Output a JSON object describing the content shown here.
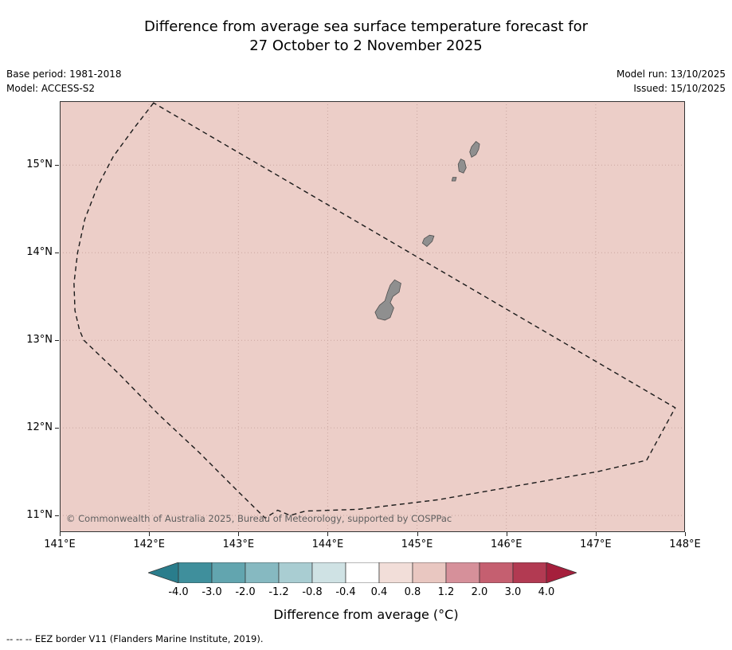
{
  "title": {
    "line1": "Difference from average sea surface temperature forecast for",
    "line2": "27 October to 2 November 2025"
  },
  "meta": {
    "base_period": "Base period: 1981-2018",
    "model": "Model: ACCESS-S2",
    "model_run": "Model run: 13/10/2025",
    "issued": "Issued: 15/10/2025"
  },
  "map": {
    "copyright": "© Commonwealth of Australia 2025, Bureau of Meteorology, supported by COSPPac",
    "lon_min": 141,
    "lon_max": 148,
    "lat_min": 10.81,
    "lat_max": 15.73,
    "colors": {
      "sea": "#eccec8",
      "grid": "#c9a6a0",
      "island": "#8f8f8f",
      "island_outline": "#4f4f4f",
      "eez": "#1a1a1a",
      "frame": "#333333"
    },
    "x_ticks": [
      {
        "lon": 141,
        "label": "141°E"
      },
      {
        "lon": 142,
        "label": "142°E"
      },
      {
        "lon": 143,
        "label": "143°E"
      },
      {
        "lon": 144,
        "label": "144°E"
      },
      {
        "lon": 145,
        "label": "145°E"
      },
      {
        "lon": 146,
        "label": "146°E"
      },
      {
        "lon": 147,
        "label": "147°E"
      },
      {
        "lon": 148,
        "label": "148°E"
      }
    ],
    "y_ticks": [
      {
        "lat": 11,
        "label": "11°N"
      },
      {
        "lat": 12,
        "label": "12°N"
      },
      {
        "lat": 13,
        "label": "13°N"
      },
      {
        "lat": 14,
        "label": "14°N"
      },
      {
        "lat": 15,
        "label": "15°N"
      }
    ],
    "eez_border": [
      [
        142.05,
        15.71
      ],
      [
        141.83,
        15.42
      ],
      [
        141.6,
        15.1
      ],
      [
        141.42,
        14.75
      ],
      [
        141.28,
        14.38
      ],
      [
        141.2,
        14.0
      ],
      [
        141.16,
        13.65
      ],
      [
        141.17,
        13.34
      ],
      [
        141.22,
        13.12
      ],
      [
        141.27,
        13.0
      ],
      [
        141.67,
        12.61
      ],
      [
        142.11,
        12.15
      ],
      [
        142.56,
        11.72
      ],
      [
        143.01,
        11.26
      ],
      [
        143.3,
        10.97
      ],
      [
        143.44,
        11.06
      ],
      [
        143.58,
        11.0
      ],
      [
        143.75,
        11.05
      ],
      [
        144.34,
        11.07
      ],
      [
        145.24,
        11.18
      ],
      [
        146.13,
        11.34
      ],
      [
        147.02,
        11.5
      ],
      [
        147.57,
        11.63
      ],
      [
        147.89,
        12.23
      ]
    ],
    "islands": [
      {
        "name": "saipan",
        "points": [
          [
            145.59,
            15.15
          ],
          [
            145.61,
            15.21
          ],
          [
            145.66,
            15.27
          ],
          [
            145.7,
            15.24
          ],
          [
            145.69,
            15.18
          ],
          [
            145.66,
            15.12
          ],
          [
            145.61,
            15.09
          ]
        ]
      },
      {
        "name": "tinian",
        "points": [
          [
            145.46,
            15.01
          ],
          [
            145.47,
            14.93
          ],
          [
            145.52,
            14.91
          ],
          [
            145.55,
            14.97
          ],
          [
            145.53,
            15.05
          ],
          [
            145.49,
            15.07
          ]
        ]
      },
      {
        "name": "aguijan",
        "points": [
          [
            145.39,
            14.82
          ],
          [
            145.4,
            14.86
          ],
          [
            145.44,
            14.86
          ],
          [
            145.43,
            14.82
          ]
        ]
      },
      {
        "name": "rota",
        "points": [
          [
            145.06,
            14.11
          ],
          [
            145.11,
            14.07
          ],
          [
            145.17,
            14.13
          ],
          [
            145.19,
            14.19
          ],
          [
            145.14,
            14.2
          ],
          [
            145.08,
            14.16
          ]
        ]
      },
      {
        "name": "guam",
        "points": [
          [
            144.75,
            13.69
          ],
          [
            144.82,
            13.65
          ],
          [
            144.8,
            13.55
          ],
          [
            144.73,
            13.5
          ],
          [
            144.7,
            13.43
          ],
          [
            144.74,
            13.37
          ],
          [
            144.7,
            13.26
          ],
          [
            144.64,
            13.23
          ],
          [
            144.56,
            13.25
          ],
          [
            144.53,
            13.32
          ],
          [
            144.58,
            13.4
          ],
          [
            144.64,
            13.45
          ],
          [
            144.67,
            13.55
          ],
          [
            144.7,
            13.63
          ]
        ]
      }
    ]
  },
  "colorbar": {
    "left_arrow_color": "#2a7d8c",
    "right_arrow_color": "#a51f3c",
    "cells": [
      "#3f8f9c",
      "#62a5af",
      "#86b9c1",
      "#a9cdd2",
      "#cfe2e4",
      "#ffffff",
      "#f2ded9",
      "#e9c7c1",
      "#d6909a",
      "#c55f70",
      "#b23a52"
    ],
    "tick_labels": [
      "-4.0",
      "-3.0",
      "-2.0",
      "-1.2",
      "-0.8",
      "-0.4",
      "0.4",
      "0.8",
      "1.2",
      "2.0",
      "3.0",
      "4.0"
    ],
    "title": "Difference from average (°C)"
  },
  "footer": {
    "eez_note": "-- -- -- EEZ border V11 (Flanders Marine Institute, 2019)."
  },
  "chart_data": {
    "type": "heatmap",
    "title": "Difference from average sea surface temperature forecast for 27 October to 2 November 2025",
    "x_ticks": [
      "141°E",
      "142°E",
      "143°E",
      "144°E",
      "145°E",
      "146°E",
      "147°E",
      "148°E"
    ],
    "y_ticks": [
      "11°N",
      "12°N",
      "13°N",
      "14°N",
      "15°N"
    ],
    "lon_range": [
      141,
      148
    ],
    "lat_range": [
      10.8,
      15.7
    ],
    "colorbar_label": "Difference from average (°C)",
    "colorbar_boundaries": [
      -4.0,
      -3.0,
      -2.0,
      -1.2,
      -0.8,
      -0.4,
      0.4,
      0.8,
      1.2,
      2.0,
      3.0,
      4.0
    ],
    "observed_field": "Entire mapped region shaded in the +0.8 to +1.2 °C anomaly bin",
    "overlays": [
      "Dashed EEZ border polygon",
      "Mariana Islands land shapes (Guam, Rota, Aguijan, Tinian, Saipan)"
    ]
  }
}
